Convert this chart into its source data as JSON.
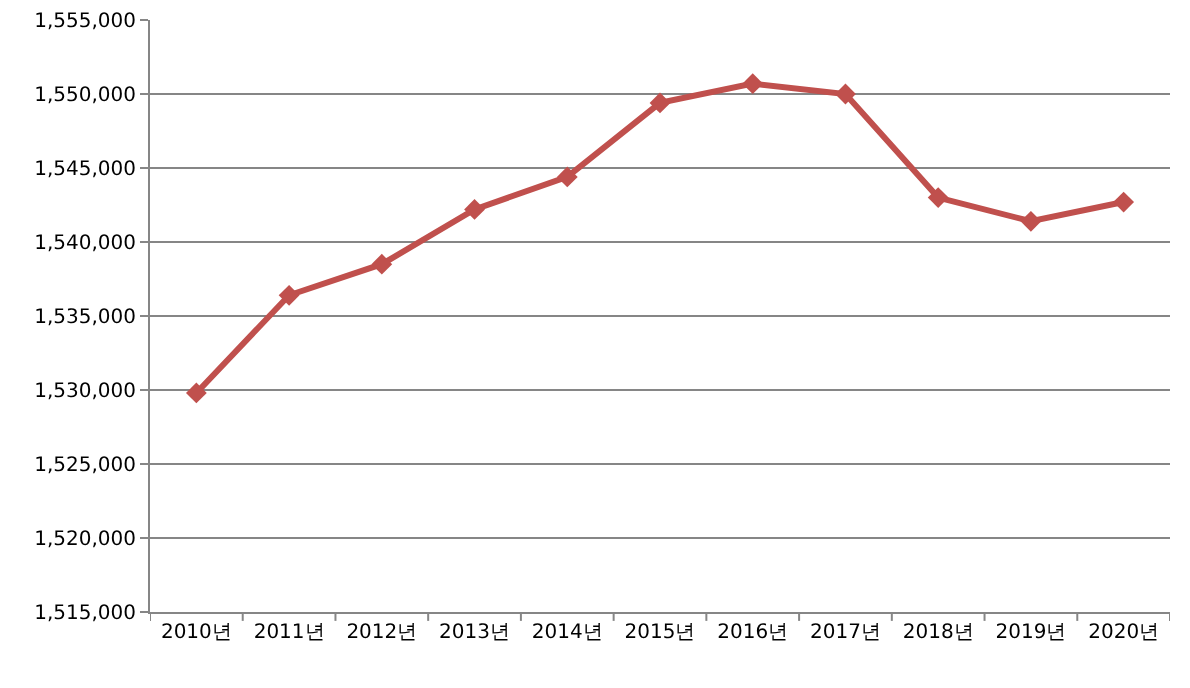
{
  "chart_data": {
    "type": "line",
    "categories": [
      "2010년",
      "2011년",
      "2012년",
      "2013년",
      "2014년",
      "2015년",
      "2016년",
      "2017년",
      "2018년",
      "2019년",
      "2020년"
    ],
    "series": [
      {
        "color": "#c0504d",
        "values": [
          1529800,
          1536400,
          1538500,
          1542200,
          1544400,
          1549400,
          1550700,
          1550000,
          1543000,
          1541400,
          1542700
        ]
      }
    ],
    "ylim": [
      1515000,
      1555000
    ],
    "yticks": [
      {
        "value": 1515000,
        "label": "1,515,000"
      },
      {
        "value": 1520000,
        "label": "1,520,000"
      },
      {
        "value": 1525000,
        "label": "1,525,000"
      },
      {
        "value": 1530000,
        "label": "1,530,000"
      },
      {
        "value": 1535000,
        "label": "1,535,000"
      },
      {
        "value": 1540000,
        "label": "1,540,000"
      },
      {
        "value": 1545000,
        "label": "1,545,000"
      },
      {
        "value": 1550000,
        "label": "1,550,000"
      },
      {
        "value": 1555000,
        "label": "1,555,000"
      }
    ],
    "grid": "y",
    "marker": "diamond",
    "line_style": "solid"
  }
}
